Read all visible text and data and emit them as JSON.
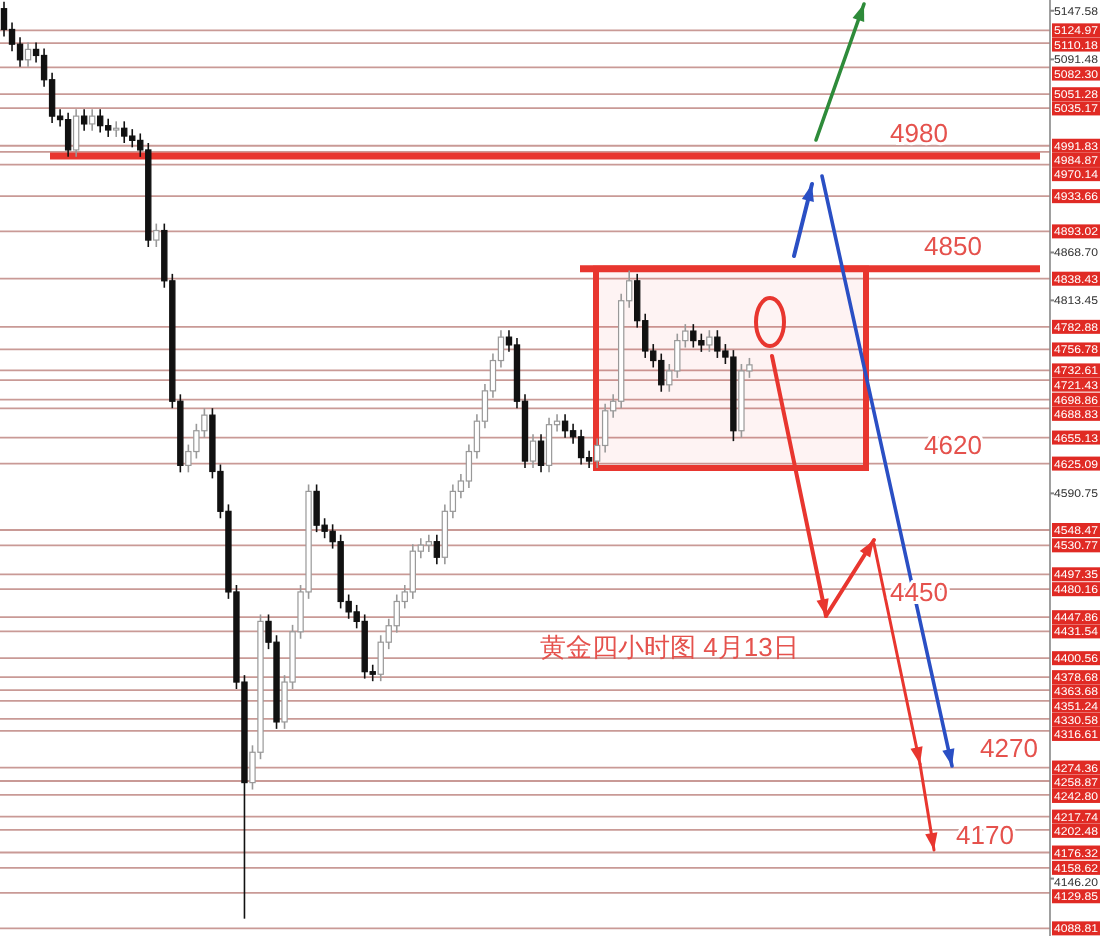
{
  "chart_data": {
    "type": "candlestick",
    "title": "黄金四小时图  4月13日",
    "categories": [
      null,
      null,
      null,
      null,
      null,
      null,
      null,
      null,
      null,
      null,
      null,
      null,
      null,
      null,
      null,
      null,
      null,
      null,
      null,
      null,
      null,
      null,
      null,
      null,
      null,
      null,
      null,
      null,
      null,
      null,
      null,
      null,
      null,
      null,
      null,
      null,
      null,
      null,
      null,
      null,
      null,
      null,
      null,
      null,
      null,
      null,
      null,
      null,
      null,
      null,
      null,
      null,
      null,
      null,
      null,
      null,
      null,
      null,
      null,
      null,
      null,
      null,
      null,
      null,
      null,
      null,
      null,
      null,
      null,
      null,
      null,
      null,
      null,
      null,
      null,
      null,
      null,
      null,
      null,
      null,
      null,
      null,
      null,
      null,
      null,
      null,
      null,
      null,
      null,
      null,
      null,
      null,
      null,
      null,
      null,
      null,
      null,
      null,
      null,
      null,
      null,
      null,
      null,
      null,
      null,
      null,
      null,
      null,
      null,
      null,
      null,
      null,
      null,
      null,
      null,
      null,
      null,
      null,
      null,
      null,
      null,
      null,
      null,
      null,
      null,
      null,
      null,
      null,
      null,
      null,
      null
    ],
    "ohlc": [
      [
        5150,
        5158,
        5118,
        5126
      ],
      [
        5126,
        5134,
        5101,
        5109
      ],
      [
        5109,
        5117,
        5083,
        5091
      ],
      [
        5091,
        5111,
        5083,
        5103
      ],
      [
        5103,
        5111,
        5088,
        5096
      ],
      [
        5096,
        5104,
        5060,
        5068
      ],
      [
        5068,
        5076,
        5018,
        5026
      ],
      [
        5026,
        5034,
        5014,
        5022
      ],
      [
        5022,
        5030,
        4979,
        4987
      ],
      [
        4987,
        5034,
        4979,
        5026
      ],
      [
        5026,
        5034,
        5009,
        5017
      ],
      [
        5017,
        5034,
        5009,
        5026
      ],
      [
        5026,
        5034,
        5007,
        5015
      ],
      [
        5015,
        5023,
        5002,
        5010
      ],
      [
        5010,
        5020,
        5002,
        5012
      ],
      [
        5012,
        5020,
        4995,
        5003
      ],
      [
        5003,
        5011,
        4990,
        4998
      ],
      [
        4998,
        5006,
        4979,
        4987
      ],
      [
        4987,
        4995,
        4875,
        4883
      ],
      [
        4883,
        4902,
        4875,
        4894
      ],
      [
        4894,
        4902,
        4828,
        4836
      ],
      [
        4836,
        4844,
        4689,
        4697
      ],
      [
        4697,
        4705,
        4615,
        4623
      ],
      [
        4623,
        4647,
        4615,
        4639
      ],
      [
        4639,
        4671,
        4631,
        4663
      ],
      [
        4663,
        4689,
        4655,
        4681
      ],
      [
        4681,
        4689,
        4608,
        4616
      ],
      [
        4616,
        4624,
        4562,
        4570
      ],
      [
        4570,
        4578,
        4469,
        4477
      ],
      [
        4477,
        4485,
        4365,
        4373
      ],
      [
        4373,
        4381,
        4100,
        4257
      ],
      [
        4257,
        4300,
        4249,
        4292
      ],
      [
        4292,
        4451,
        4284,
        4443
      ],
      [
        4443,
        4451,
        4411,
        4419
      ],
      [
        4419,
        4427,
        4319,
        4327
      ],
      [
        4327,
        4381,
        4319,
        4373
      ],
      [
        4373,
        4439,
        4365,
        4431
      ],
      [
        4431,
        4485,
        4423,
        4477
      ],
      [
        4477,
        4601,
        4469,
        4593
      ],
      [
        4593,
        4601,
        4546,
        4554
      ],
      [
        4554,
        4562,
        4539,
        4547
      ],
      [
        4547,
        4555,
        4527,
        4535
      ],
      [
        4535,
        4543,
        4458,
        4466
      ],
      [
        4466,
        4474,
        4446,
        4454
      ],
      [
        4454,
        4462,
        4435,
        4443
      ],
      [
        4443,
        4451,
        4377,
        4385
      ],
      [
        4385,
        4393,
        4374,
        4382
      ],
      [
        4382,
        4427,
        4374,
        4419
      ],
      [
        4419,
        4446,
        4411,
        4438
      ],
      [
        4438,
        4474,
        4430,
        4466
      ],
      [
        4466,
        4485,
        4458,
        4477
      ],
      [
        4477,
        4532,
        4469,
        4524
      ],
      [
        4524,
        4539,
        4516,
        4531
      ],
      [
        4531,
        4543,
        4523,
        4535
      ],
      [
        4535,
        4543,
        4509,
        4517
      ],
      [
        4517,
        4578,
        4509,
        4570
      ],
      [
        4570,
        4601,
        4562,
        4593
      ],
      [
        4593,
        4613,
        4585,
        4605
      ],
      [
        4605,
        4647,
        4597,
        4639
      ],
      [
        4639,
        4682,
        4631,
        4674
      ],
      [
        4674,
        4717,
        4666,
        4709
      ],
      [
        4709,
        4752,
        4701,
        4744
      ],
      [
        4744,
        4779,
        4736,
        4771
      ],
      [
        4771,
        4779,
        4754,
        4762
      ],
      [
        4762,
        4770,
        4689,
        4697
      ],
      [
        4697,
        4705,
        4620,
        4628
      ],
      [
        4628,
        4659,
        4620,
        4651
      ],
      [
        4651,
        4659,
        4615,
        4623
      ],
      [
        4623,
        4678,
        4615,
        4670
      ],
      [
        4670,
        4682,
        4662,
        4674
      ],
      [
        4674,
        4682,
        4655,
        4663
      ],
      [
        4663,
        4671,
        4648,
        4656
      ],
      [
        4656,
        4664,
        4624,
        4632
      ],
      [
        4632,
        4640,
        4620,
        4628
      ],
      [
        4628,
        4654,
        4620,
        4646
      ],
      [
        4646,
        4694,
        4638,
        4686
      ],
      [
        4686,
        4705,
        4678,
        4697
      ],
      [
        4697,
        4821,
        4689,
        4813
      ],
      [
        4813,
        4848,
        4805,
        4836
      ],
      [
        4836,
        4844,
        4782,
        4790
      ],
      [
        4790,
        4798,
        4747,
        4755
      ],
      [
        4755,
        4763,
        4736,
        4744
      ],
      [
        4744,
        4752,
        4708,
        4716
      ],
      [
        4716,
        4740,
        4708,
        4732
      ],
      [
        4732,
        4775,
        4724,
        4767
      ],
      [
        4767,
        4786,
        4759,
        4778
      ],
      [
        4778,
        4786,
        4759,
        4767
      ],
      [
        4767,
        4775,
        4754,
        4762
      ],
      [
        4762,
        4779,
        4754,
        4771
      ],
      [
        4771,
        4779,
        4747,
        4755
      ],
      [
        4755,
        4763,
        4740,
        4748
      ],
      [
        4748,
        4756,
        4651,
        4663
      ],
      [
        4663,
        4740,
        4655,
        4732
      ],
      [
        4732,
        4747,
        4724,
        4739
      ],
      null,
      null,
      null,
      null,
      null,
      null,
      null,
      null,
      null,
      null,
      null,
      null,
      null,
      null,
      null,
      null,
      null,
      null,
      null,
      null,
      null,
      null,
      null,
      null,
      null,
      null,
      null,
      null,
      null,
      null,
      null,
      null,
      null,
      null,
      null,
      null,
      null
    ],
    "ylim": [
      4080,
      5160
    ],
    "yticks": [
      {
        "value": 5147.58,
        "label": "5147.58"
      },
      {
        "value": 5091.48,
        "label": "5091.48"
      },
      {
        "value": 4868.7,
        "label": "4868.70"
      },
      {
        "value": 4813.45,
        "label": "4813.45"
      },
      {
        "value": 4590.75,
        "label": "4590.75"
      },
      {
        "value": 4146.2,
        "label": "4146.20"
      }
    ],
    "tick_labels": "y",
    "grid": false,
    "ref_lines": [
      {
        "axis": "y",
        "value": 5124.97,
        "label": "5124.97"
      },
      {
        "axis": "y",
        "value": 5110.18,
        "label": "5110.18"
      },
      {
        "axis": "y",
        "value": 5082.3,
        "label": "5082.30"
      },
      {
        "axis": "y",
        "value": 5051.28,
        "label": "5051.28"
      },
      {
        "axis": "y",
        "value": 5035.17,
        "label": "5035.17"
      },
      {
        "axis": "y",
        "value": 4991.83,
        "label": "4991.83"
      },
      {
        "axis": "y",
        "value": 4984.87,
        "label": "4984.87"
      },
      {
        "axis": "y",
        "value": 4970.14,
        "label": "4970.14"
      },
      {
        "axis": "y",
        "value": 4933.66,
        "label": "4933.66"
      },
      {
        "axis": "y",
        "value": 4893.02,
        "label": "4893.02"
      },
      {
        "axis": "y",
        "value": 4838.43,
        "label": "4838.43"
      },
      {
        "axis": "y",
        "value": 4782.88,
        "label": "4782.88"
      },
      {
        "axis": "y",
        "value": 4756.78,
        "label": "4756.78"
      },
      {
        "axis": "y",
        "value": 4732.61,
        "label": "4732.61"
      },
      {
        "axis": "y",
        "value": 4721.43,
        "label": "4721.43"
      },
      {
        "axis": "y",
        "value": 4698.86,
        "label": "4698.86"
      },
      {
        "axis": "y",
        "value": 4688.83,
        "label": "4688.83"
      },
      {
        "axis": "y",
        "value": 4655.13,
        "label": "4655.13"
      },
      {
        "axis": "y",
        "value": 4625.09,
        "label": "4625.09"
      },
      {
        "axis": "y",
        "value": 4548.47,
        "label": "4548.47"
      },
      {
        "axis": "y",
        "value": 4530.77,
        "label": "4530.77"
      },
      {
        "axis": "y",
        "value": 4497.35,
        "label": "4497.35"
      },
      {
        "axis": "y",
        "value": 4480.16,
        "label": "4480.16"
      },
      {
        "axis": "y",
        "value": 4447.86,
        "label": "4447.86"
      },
      {
        "axis": "y",
        "value": 4431.54,
        "label": "4431.54"
      },
      {
        "axis": "y",
        "value": 4400.56,
        "label": "4400.56"
      },
      {
        "axis": "y",
        "value": 4378.68,
        "label": "4378.68"
      },
      {
        "axis": "y",
        "value": 4363.68,
        "label": "4363.68"
      },
      {
        "axis": "y",
        "value": 4351.24,
        "label": "4351.24"
      },
      {
        "axis": "y",
        "value": 4330.58,
        "label": "4330.58"
      },
      {
        "axis": "y",
        "value": 4316.61,
        "label": "4316.61"
      },
      {
        "axis": "y",
        "value": 4274.36,
        "label": "4274.36"
      },
      {
        "axis": "y",
        "value": 4258.87,
        "label": "4258.87"
      },
      {
        "axis": "y",
        "value": 4242.8,
        "label": "4242.80"
      },
      {
        "axis": "y",
        "value": 4217.74,
        "label": "4217.74"
      },
      {
        "axis": "y",
        "value": 4202.48,
        "label": "4202.48"
      },
      {
        "axis": "y",
        "value": 4176.32,
        "label": "4176.32"
      },
      {
        "axis": "y",
        "value": 4158.62,
        "label": "4158.62"
      },
      {
        "axis": "y",
        "value": 4129.85,
        "label": "4129.85"
      },
      {
        "axis": "y",
        "value": 4088.81,
        "label": "4088.81"
      },
      {
        "axis": "y",
        "value": 4980,
        "color": "#e8362f"
      },
      {
        "axis": "y",
        "value": 4850,
        "color": "#e8362f"
      }
    ],
    "bands": [
      {
        "axis": "y",
        "from": 4620,
        "to": 4850,
        "color": "#e8362f"
      }
    ],
    "annotations": [
      {
        "text": "4980",
        "y": 4980
      },
      {
        "text": "4850",
        "y": 4850
      },
      {
        "text": "4620",
        "y": 4620
      },
      {
        "text": "4450",
        "y": 4450
      },
      {
        "text": "4270",
        "y": 4270
      },
      {
        "text": "4170",
        "y": 4170
      }
    ]
  }
}
